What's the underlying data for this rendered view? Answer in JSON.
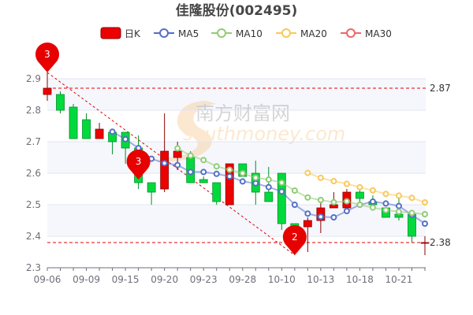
{
  "chart_data": {
    "type": "candlestick",
    "title": "佳隆股份(002495)",
    "legend": [
      {
        "name": "日K",
        "color": "#ec0000"
      },
      {
        "name": "MA5",
        "color": "#5470c6",
        "period": 5
      },
      {
        "name": "MA10",
        "color": "#91cc75",
        "period": 10
      },
      {
        "name": "MA20",
        "color": "#fac858",
        "period": 20
      },
      {
        "name": "MA30",
        "color": "#ee6666",
        "period": 30
      }
    ],
    "legend_position": "top",
    "up_color": "#ec0000",
    "down_color": "#00da3c",
    "dates": [
      "09-06",
      "09-07",
      "09-08",
      "09-09",
      "09-13",
      "09-14",
      "09-15",
      "09-16",
      "09-19",
      "09-20",
      "09-21",
      "09-22",
      "09-23",
      "09-26",
      "09-27",
      "09-28",
      "09-29",
      "09-30",
      "10-10",
      "10-11",
      "10-12",
      "10-13",
      "10-14",
      "10-17",
      "10-18",
      "10-19",
      "10-20",
      "10-21",
      "10-24",
      "10-25"
    ],
    "x_tick_labels": [
      "09-06",
      "09-09",
      "09-15",
      "09-20",
      "09-23",
      "09-28",
      "10-10",
      "10-13",
      "10-18",
      "10-21"
    ],
    "ohlc": [
      [
        2.85,
        2.87,
        2.83,
        2.92
      ],
      [
        2.85,
        2.8,
        2.79,
        2.86
      ],
      [
        2.81,
        2.71,
        2.71,
        2.82
      ],
      [
        2.77,
        2.71,
        2.71,
        2.79
      ],
      [
        2.71,
        2.74,
        2.71,
        2.76
      ],
      [
        2.73,
        2.7,
        2.66,
        2.73
      ],
      [
        2.73,
        2.68,
        2.63,
        2.73
      ],
      [
        2.68,
        2.57,
        2.55,
        2.72
      ],
      [
        2.57,
        2.54,
        2.5,
        2.57
      ],
      [
        2.55,
        2.67,
        2.54,
        2.79
      ],
      [
        2.65,
        2.67,
        2.61,
        2.7
      ],
      [
        2.65,
        2.57,
        2.57,
        2.67
      ],
      [
        2.58,
        2.57,
        2.57,
        2.59
      ],
      [
        2.57,
        2.51,
        2.5,
        2.57
      ],
      [
        2.5,
        2.63,
        2.5,
        2.63
      ],
      [
        2.63,
        2.59,
        2.59,
        2.63
      ],
      [
        2.6,
        2.54,
        2.5,
        2.64
      ],
      [
        2.54,
        2.51,
        2.51,
        2.62
      ],
      [
        2.6,
        2.44,
        2.42,
        2.6
      ],
      [
        2.44,
        2.42,
        2.34,
        2.44
      ],
      [
        2.43,
        2.45,
        2.35,
        2.46
      ],
      [
        2.45,
        2.49,
        2.41,
        2.51
      ],
      [
        2.49,
        2.5,
        2.49,
        2.54
      ],
      [
        2.49,
        2.54,
        2.49,
        2.55
      ],
      [
        2.54,
        2.52,
        2.51,
        2.55
      ],
      [
        2.51,
        2.5,
        2.5,
        2.53
      ],
      [
        2.49,
        2.46,
        2.46,
        2.49
      ],
      [
        2.47,
        2.46,
        2.45,
        2.52
      ],
      [
        2.47,
        2.4,
        2.38,
        2.47
      ],
      [
        2.38,
        2.38,
        2.34,
        2.4
      ]
    ],
    "ohlc_order": [
      "open",
      "close",
      "low",
      "high"
    ],
    "ylim": [
      2.3,
      3.0
    ],
    "y_ticks": [
      "2.3",
      "2.4",
      "2.5",
      "2.6",
      "2.7",
      "2.8",
      "2.9"
    ],
    "grid": true,
    "mark_lines": [
      {
        "value": 2.87,
        "label": "2.87"
      },
      {
        "value": 2.38,
        "label": "2.38"
      }
    ],
    "mark_points": [
      {
        "date": "09-06",
        "value": 2.92,
        "label": "3"
      },
      {
        "date": "09-16",
        "value": 2.58,
        "label": "3"
      },
      {
        "date": "10-11",
        "value": 2.34,
        "label": "2"
      }
    ],
    "trend_line": {
      "from": {
        "date": "09-06",
        "value": 2.92
      },
      "to": {
        "date": "10-11",
        "value": 2.34
      }
    }
  },
  "watermark": {
    "cn": "南方财富网",
    "en": "southmoney.com"
  }
}
